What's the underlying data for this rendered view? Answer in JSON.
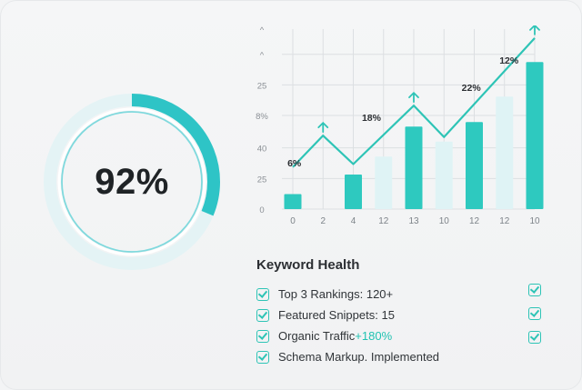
{
  "gauge": {
    "value_label": "92%",
    "percent": 92,
    "color": "#2ec4c6",
    "track_color": "#7fd9dd"
  },
  "chart_data": {
    "type": "bar",
    "categories": [
      "0",
      "2",
      "4",
      "12",
      "13",
      "10",
      "12",
      "12",
      "10"
    ],
    "y_ticks": [
      "0",
      "25",
      "40",
      "8%",
      "25",
      "^",
      "^"
    ],
    "bars": [
      {
        "category": "0",
        "value": 10,
        "highlight": true
      },
      {
        "category": "4",
        "value": 23,
        "highlight": true
      },
      {
        "category": "12",
        "value": 35,
        "highlight": false
      },
      {
        "category": "13",
        "value": 55,
        "highlight": true
      },
      {
        "category": "10",
        "value": 45,
        "highlight": false
      },
      {
        "category": "12",
        "value": 58,
        "highlight": true
      },
      {
        "category": "12",
        "value": 75,
        "highlight": false
      },
      {
        "category": "10",
        "value": 98,
        "highlight": true
      }
    ],
    "trend_line": [
      {
        "category": "0",
        "value": 28
      },
      {
        "category": "2",
        "value": 49
      },
      {
        "category": "4",
        "value": 30
      },
      {
        "category": "13",
        "value": 69
      },
      {
        "category": "10",
        "value": 48
      },
      {
        "category": "10",
        "value": 114
      }
    ],
    "trend_labels": [
      {
        "text": "6%",
        "category": "0"
      },
      {
        "text": "18%",
        "category": "12"
      },
      {
        "text": "22%",
        "category": "12"
      },
      {
        "text": "12%",
        "category": "12"
      }
    ],
    "colors": {
      "bar": "#2ec9bf",
      "bar_faint": "#dff3f5",
      "line": "#2ec4b6",
      "grid": "#dcdfe2"
    }
  },
  "keyword_health": {
    "title": "Keyword Health",
    "items": [
      {
        "label": "Top 3 Rankings: 120+",
        "accent": ""
      },
      {
        "label": "Featured Snippets: 15",
        "accent": ""
      },
      {
        "label": "Organic Traffic ",
        "accent": "+180%"
      },
      {
        "label": "Schema Markup. Implemented",
        "accent": ""
      }
    ],
    "right_check_count": 3
  }
}
